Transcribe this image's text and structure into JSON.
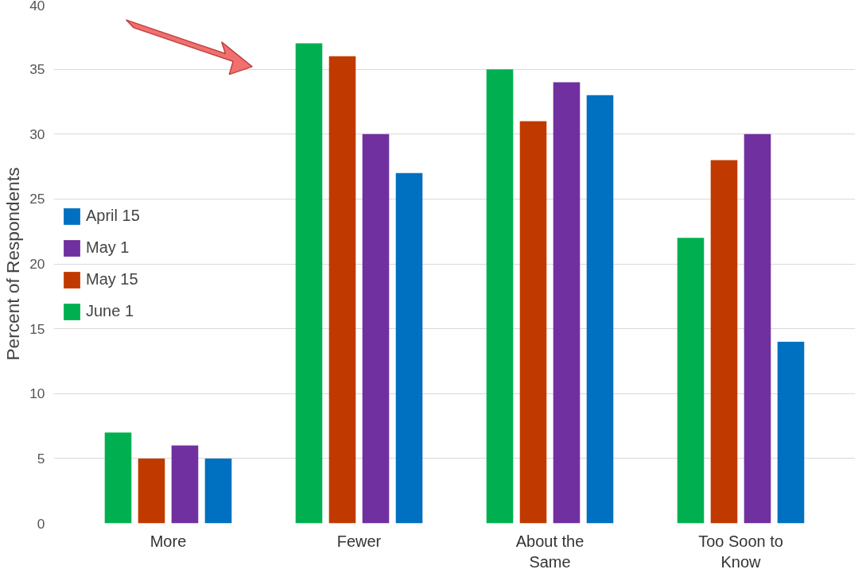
{
  "chart_data": {
    "type": "bar",
    "ylabel": "Percent of Respondents",
    "categories": [
      "More",
      "Fewer",
      "About the Same",
      "Too Soon to Know"
    ],
    "series": [
      {
        "name": "June 1",
        "color": "#00b050",
        "values": [
          7,
          37,
          35,
          22
        ]
      },
      {
        "name": "May 15",
        "color": "#c03a00",
        "values": [
          5,
          36,
          31,
          28
        ]
      },
      {
        "name": "May 1",
        "color": "#7030a0",
        "values": [
          6,
          30,
          34,
          30
        ]
      },
      {
        "name": "April 15",
        "color": "#0070c0",
        "values": [
          5,
          27,
          33,
          14
        ]
      }
    ],
    "ylim": [
      0,
      40
    ],
    "yticks": [
      0,
      5,
      10,
      15,
      20,
      25,
      30,
      35,
      40
    ],
    "grid": "y",
    "legend": "left"
  }
}
